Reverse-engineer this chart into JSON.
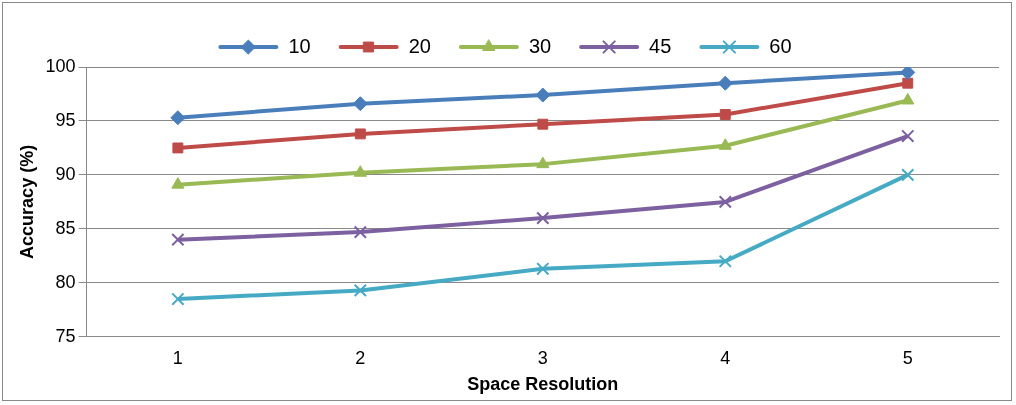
{
  "chart_data": {
    "type": "line",
    "xlabel": "Space Resolution",
    "ylabel": "Accuracy (%)",
    "categories": [
      "1",
      "2",
      "3",
      "4",
      "5"
    ],
    "ylim": [
      75,
      100
    ],
    "yticks": [
      75,
      80,
      85,
      90,
      95,
      100
    ],
    "grid": "y",
    "legend": "top",
    "line_style": "solid",
    "series": [
      {
        "name": "10",
        "color": "#4a7ebb",
        "marker": "diamond",
        "values": [
          95.3,
          96.6,
          97.4,
          98.5,
          99.5
        ]
      },
      {
        "name": "20",
        "color": "#be4b48",
        "marker": "square",
        "values": [
          92.5,
          93.8,
          94.7,
          95.6,
          98.5
        ]
      },
      {
        "name": "30",
        "color": "#98b954",
        "marker": "triangle",
        "values": [
          89.1,
          90.2,
          91.0,
          92.7,
          96.9
        ]
      },
      {
        "name": "45",
        "color": "#7d60a0",
        "marker": "cross",
        "values": [
          84.0,
          84.7,
          86.0,
          87.5,
          93.6
        ]
      },
      {
        "name": "60",
        "color": "#46aac5",
        "marker": "cross",
        "values": [
          78.5,
          79.3,
          81.3,
          82.0,
          90.0
        ]
      }
    ]
  }
}
